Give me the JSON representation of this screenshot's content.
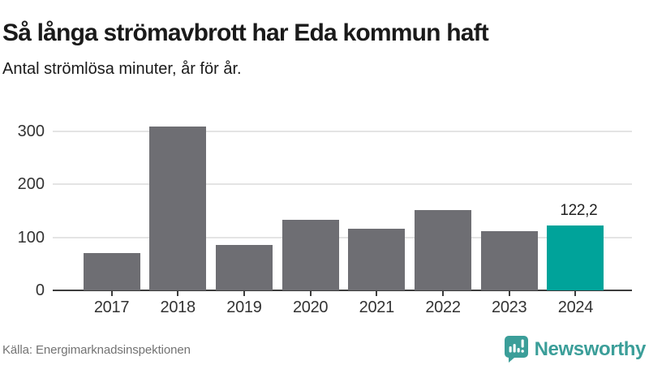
{
  "header": {
    "title": "Så långa strömavbrott har Eda kommun haft",
    "subtitle": "Antal strömlösa minuter, år för år."
  },
  "chart_data": {
    "type": "bar",
    "title": "Så långa strömavbrott har Eda kommun haft",
    "subtitle": "Antal strömlösa minuter, år för år.",
    "xlabel": "",
    "ylabel": "Antal strömlösa minuter",
    "categories": [
      "2017",
      "2018",
      "2019",
      "2020",
      "2021",
      "2022",
      "2023",
      "2024"
    ],
    "values": [
      70,
      309,
      85,
      133,
      116,
      152,
      112,
      122.2
    ],
    "yticks": [
      0,
      100,
      200,
      300
    ],
    "ylim": [
      0,
      318
    ],
    "grid": true,
    "legend": "none",
    "bar_color": "#6e6e73",
    "highlight_color": "#00a39a",
    "highlight_index": 7,
    "value_labels": [
      {
        "index": 7,
        "text": "122,2"
      }
    ]
  },
  "footer": {
    "source": "Källa: Energimarknadsinspektionen",
    "brand": "Newsworthy",
    "brand_color": "#3b9e99",
    "logo_icon": "newsworthy-speech-bubble-bars-icon"
  }
}
